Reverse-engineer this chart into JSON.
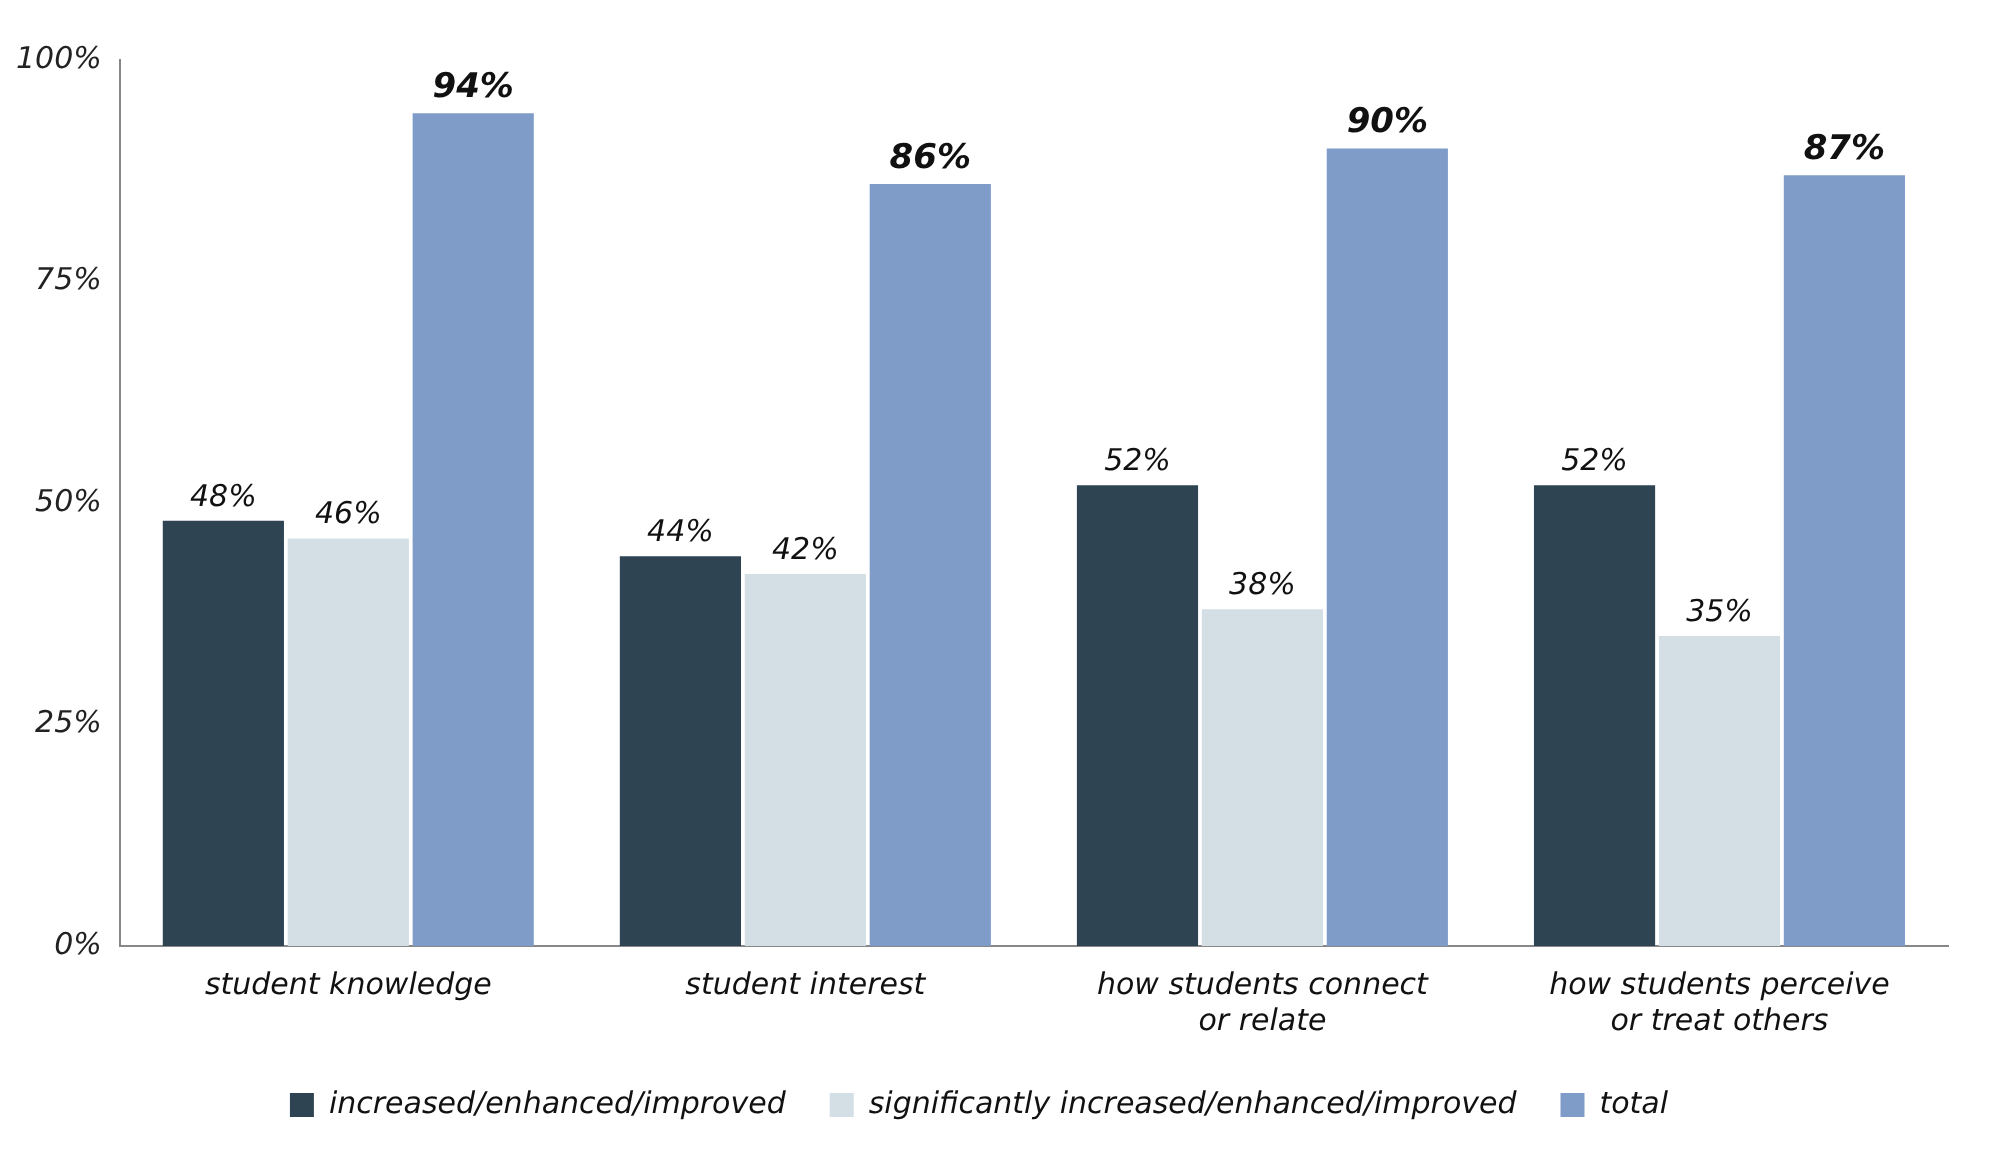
{
  "chart_data": {
    "type": "bar",
    "categories": [
      "student knowledge",
      "student interest",
      "how students connect or relate",
      "how students perceive or treat others"
    ],
    "series": [
      {
        "name": "increased/enhanced/improved",
        "color": "#2e4453",
        "values": [
          48,
          44,
          52,
          52
        ],
        "value_labels": [
          "48%",
          "44%",
          "52%",
          "52%"
        ]
      },
      {
        "name": "significantly increased/enhanced/improved",
        "color": "#d3dee5",
        "values": [
          46,
          42,
          38,
          35
        ],
        "value_labels": [
          "46%",
          "42%",
          "38%",
          "35%"
        ]
      },
      {
        "name": "total",
        "color": "#7f9cc9",
        "values": [
          94,
          86,
          90,
          87
        ],
        "value_labels": [
          "94%",
          "86%",
          "90%",
          "87%"
        ]
      }
    ],
    "ylim": [
      0,
      100
    ],
    "yticks": [
      {
        "value": 0,
        "label": "0%"
      },
      {
        "value": 25,
        "label": "25%"
      },
      {
        "value": 50,
        "label": "50%"
      },
      {
        "value": 75,
        "label": "75%"
      },
      {
        "value": 100,
        "label": "100%"
      }
    ],
    "grid": false,
    "legend": "bottom"
  }
}
